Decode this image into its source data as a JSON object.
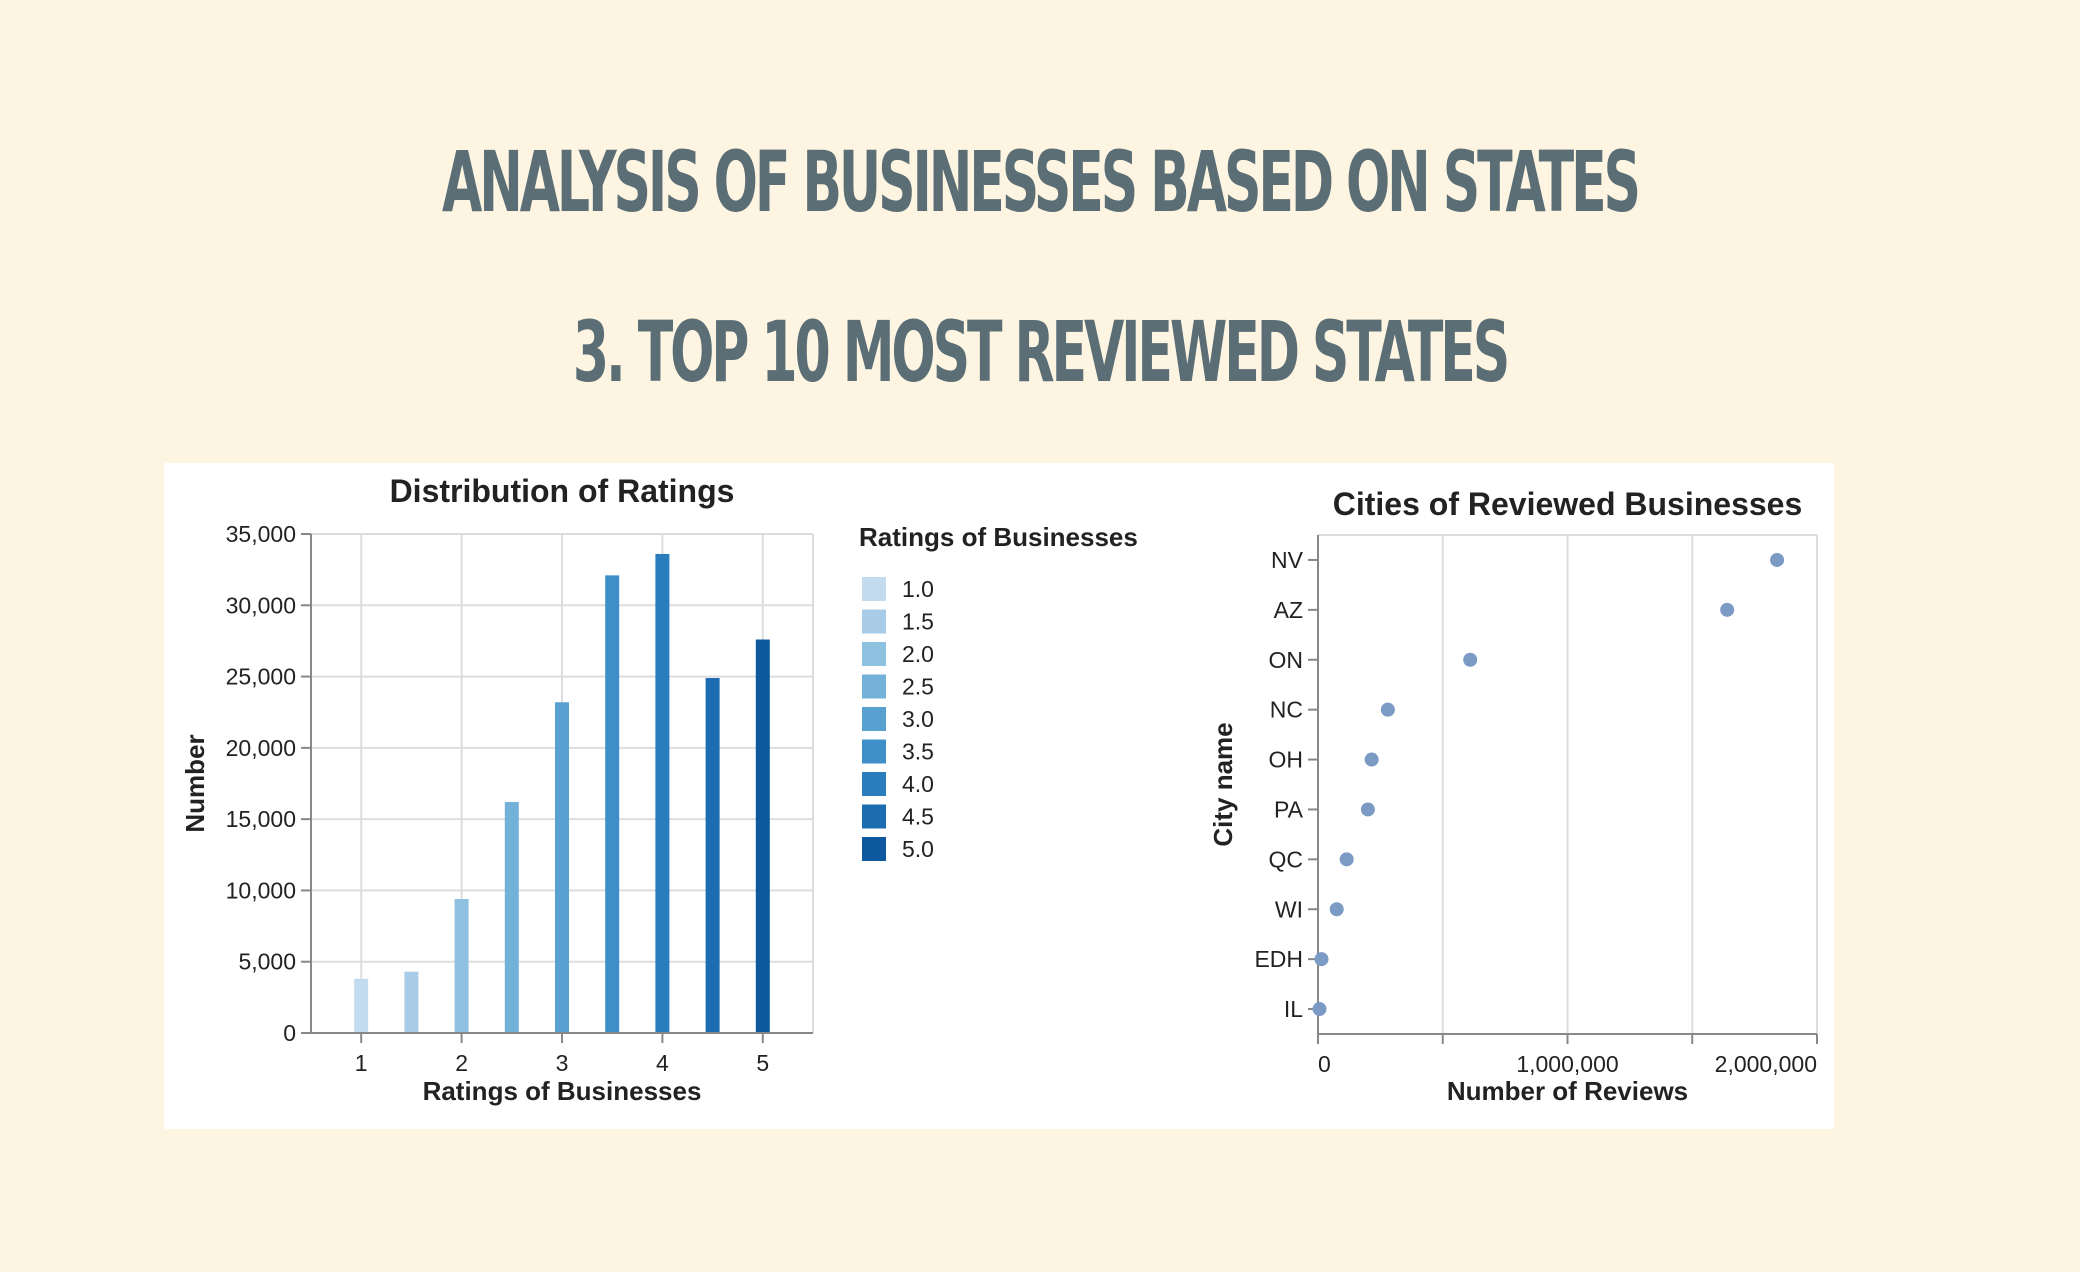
{
  "header": {
    "title": "ANALYSIS OF BUSINESSES BASED ON STATES",
    "subtitle": "3. TOP 10 MOST REVIEWED STATES"
  },
  "chart_data": [
    {
      "type": "bar",
      "title": "Distribution of Ratings",
      "xlabel": "Ratings of Businesses",
      "ylabel": "Number",
      "categories": [
        1.0,
        1.5,
        2.0,
        2.5,
        3.0,
        3.5,
        4.0,
        4.5,
        5.0
      ],
      "values": [
        3800,
        4300,
        9400,
        16200,
        23200,
        32100,
        33600,
        24900,
        27600
      ],
      "x_ticks": [
        "1",
        "2",
        "3",
        "4",
        "5"
      ],
      "y_ticks": [
        "0",
        "5,000",
        "10,000",
        "15,000",
        "20,000",
        "25,000",
        "30,000",
        "35,000"
      ],
      "ylim": [
        0,
        35000
      ],
      "xlim": [
        0.5,
        5.5
      ],
      "grid": true,
      "legend": {
        "title": "Ratings of Businesses",
        "placement": "right",
        "labels": [
          "1.0",
          "1.5",
          "2.0",
          "2.5",
          "3.0",
          "3.5",
          "4.0",
          "4.5",
          "5.0"
        ],
        "colors": [
          "#c2dbee",
          "#a9cce8",
          "#8ec0e0",
          "#74b1d9",
          "#58a1d0",
          "#3f90c8",
          "#2a7dbd",
          "#1b6cb1",
          "#0e58a0"
        ]
      }
    },
    {
      "type": "scatter",
      "title": "Cities of Reviewed Businesses",
      "xlabel": "Number of Reviews",
      "ylabel": "City name",
      "categories": [
        "NV",
        "AZ",
        "ON",
        "NC",
        "OH",
        "PA",
        "QC",
        "WI",
        "EDH",
        "IL"
      ],
      "values": [
        1840000,
        1640000,
        610000,
        280000,
        215000,
        200000,
        115000,
        75000,
        14000,
        6000
      ],
      "x_ticks": [
        "0",
        "1,000,000",
        "2,000,000"
      ],
      "xlim": [
        0,
        2000000
      ],
      "grid": true,
      "point_color": "#7b9ac4"
    }
  ]
}
